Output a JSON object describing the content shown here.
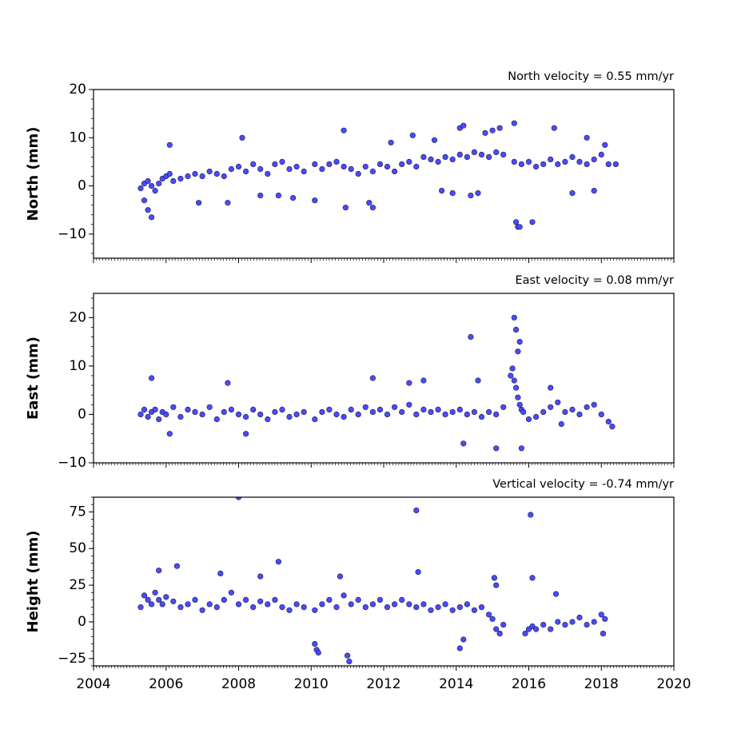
{
  "chart_data": [
    {
      "type": "scatter",
      "title": "North velocity = 0.55 mm/yr",
      "xlabel": "",
      "ylabel": "North (mm)",
      "xlim": [
        2004,
        2020
      ],
      "ylim": [
        -15,
        20
      ],
      "yticks": [
        -10,
        0,
        10,
        20
      ],
      "ytick_labels": [
        "−10",
        "0",
        "10",
        "20"
      ],
      "xticks": [
        2004,
        2006,
        2008,
        2010,
        2012,
        2014,
        2016,
        2018,
        2020
      ],
      "xtick_labels": [],
      "marker_color": "#4a4aff",
      "marker_edge": "#1a1a40",
      "series": [
        {
          "x": [
            2005.3,
            2005.4,
            2005.5,
            2005.6,
            2005.7,
            2005.8,
            2005.9,
            2006.0,
            2006.1,
            2006.2,
            2006.4,
            2006.6,
            2006.8,
            2007.0,
            2007.2,
            2007.4,
            2007.6,
            2007.8,
            2008.0,
            2008.2,
            2008.4,
            2008.6,
            2008.8,
            2009.0,
            2009.2,
            2009.4,
            2009.6,
            2009.8,
            2010.1,
            2010.3,
            2010.5,
            2010.7,
            2010.9,
            2011.1,
            2011.3,
            2011.5,
            2011.7,
            2011.9,
            2012.1,
            2012.3,
            2012.5,
            2012.7,
            2012.9,
            2013.1,
            2013.3,
            2013.5,
            2013.7,
            2013.9,
            2014.1,
            2014.3,
            2014.5,
            2014.7,
            2014.9,
            2015.1,
            2015.3,
            2015.6,
            2015.8,
            2016.0,
            2016.2,
            2016.4,
            2016.6,
            2016.8,
            2017.0,
            2017.2,
            2017.4,
            2017.6,
            2017.8,
            2018.0,
            2018.2,
            2005.4,
            2005.5,
            2005.6,
            2006.1,
            2006.9,
            2007.7,
            2008.1,
            2008.6,
            2009.1,
            2009.5,
            2010.1,
            2010.9,
            2010.95,
            2011.6,
            2011.7,
            2012.2,
            2012.8,
            2013.4,
            2013.6,
            2013.9,
            2014.1,
            2014.2,
            2014.4,
            2014.6,
            2014.8,
            2015.0,
            2015.2,
            2015.6,
            2015.65,
            2015.7,
            2015.75,
            2016.1,
            2016.7,
            2017.2,
            2017.6,
            2017.8,
            2018.1,
            2018.4
          ],
          "y": [
            -0.5,
            0.5,
            1.0,
            0.0,
            -1.0,
            0.5,
            1.5,
            2.0,
            2.5,
            1.0,
            1.5,
            2.0,
            2.5,
            2.0,
            3.0,
            2.5,
            2.0,
            3.5,
            4.0,
            3.0,
            4.5,
            3.5,
            2.5,
            4.5,
            5.0,
            3.5,
            4.0,
            3.0,
            4.5,
            3.5,
            4.5,
            5.0,
            4.0,
            3.5,
            2.5,
            4.0,
            3.0,
            4.5,
            4.0,
            3.0,
            4.5,
            5.0,
            4.0,
            6.0,
            5.5,
            5.0,
            6.0,
            5.5,
            6.5,
            6.0,
            7.0,
            6.5,
            6.0,
            7.0,
            6.5,
            5.0,
            4.5,
            5.0,
            4.0,
            4.5,
            5.5,
            4.5,
            5.0,
            6.0,
            5.0,
            4.5,
            5.5,
            6.5,
            4.5,
            -3.0,
            -5.0,
            -6.5,
            8.5,
            -3.5,
            -3.5,
            10.0,
            -2.0,
            -2.0,
            -2.5,
            -3.0,
            11.5,
            -4.5,
            -3.5,
            -4.5,
            9.0,
            10.5,
            9.5,
            -1.0,
            -1.5,
            12.0,
            12.5,
            -2.0,
            -1.5,
            11.0,
            11.5,
            12.0,
            13.0,
            -7.5,
            -8.5,
            -8.5,
            -7.5,
            12.0,
            -1.5,
            10.0,
            -1.0,
            8.5,
            4.5
          ]
        }
      ]
    },
    {
      "type": "scatter",
      "title": "East velocity = 0.08 mm/yr",
      "xlabel": "",
      "ylabel": "East (mm)",
      "xlim": [
        2004,
        2020
      ],
      "ylim": [
        -10,
        25
      ],
      "yticks": [
        -10,
        0,
        10,
        20
      ],
      "ytick_labels": [
        "−10",
        "0",
        "10",
        "20"
      ],
      "xticks": [
        2004,
        2006,
        2008,
        2010,
        2012,
        2014,
        2016,
        2018,
        2020
      ],
      "xtick_labels": [],
      "marker_color": "#4a4aff",
      "marker_edge": "#1a1a40",
      "series": [
        {
          "x": [
            2005.3,
            2005.4,
            2005.5,
            2005.6,
            2005.7,
            2005.8,
            2005.9,
            2006.0,
            2006.2,
            2006.4,
            2006.6,
            2006.8,
            2007.0,
            2007.2,
            2007.4,
            2007.6,
            2007.8,
            2008.0,
            2008.2,
            2008.4,
            2008.6,
            2008.8,
            2009.0,
            2009.2,
            2009.4,
            2009.6,
            2009.8,
            2010.1,
            2010.3,
            2010.5,
            2010.7,
            2010.9,
            2011.1,
            2011.3,
            2011.5,
            2011.7,
            2011.9,
            2012.1,
            2012.3,
            2012.5,
            2012.7,
            2012.9,
            2013.1,
            2013.3,
            2013.5,
            2013.7,
            2013.9,
            2014.1,
            2014.3,
            2014.5,
            2014.7,
            2014.9,
            2015.1,
            2015.3,
            2015.5,
            2015.55,
            2015.6,
            2015.65,
            2015.7,
            2015.75,
            2015.8,
            2015.85,
            2016.0,
            2016.2,
            2016.4,
            2016.6,
            2016.8,
            2017.0,
            2017.2,
            2017.4,
            2017.6,
            2017.8,
            2018.0,
            2018.2,
            2005.6,
            2006.1,
            2007.7,
            2008.2,
            2011.7,
            2012.7,
            2013.1,
            2014.2,
            2014.6,
            2014.4,
            2015.1,
            2015.6,
            2015.65,
            2015.7,
            2015.75,
            2015.8,
            2016.6,
            2016.9,
            2018.3
          ],
          "y": [
            0.0,
            1.0,
            -0.5,
            0.5,
            1.0,
            -1.0,
            0.5,
            0.0,
            1.5,
            -0.5,
            1.0,
            0.5,
            0.0,
            1.5,
            -1.0,
            0.5,
            1.0,
            0.0,
            -0.5,
            1.0,
            0.0,
            -1.0,
            0.5,
            1.0,
            -0.5,
            0.0,
            0.5,
            -1.0,
            0.5,
            1.0,
            0.0,
            -0.5,
            1.0,
            0.0,
            1.5,
            0.5,
            1.0,
            0.0,
            1.5,
            0.5,
            2.0,
            0.0,
            1.0,
            0.5,
            1.0,
            0.0,
            0.5,
            1.0,
            0.0,
            0.5,
            -0.5,
            0.5,
            0.0,
            1.5,
            8.0,
            9.5,
            7.0,
            5.5,
            3.5,
            2.0,
            1.0,
            0.5,
            -1.0,
            -0.5,
            0.5,
            1.5,
            2.5,
            0.5,
            1.0,
            0.0,
            1.5,
            2.0,
            0.0,
            -1.5,
            7.5,
            -4.0,
            6.5,
            -4.0,
            7.5,
            6.5,
            7.0,
            -6.0,
            7.0,
            16.0,
            -7.0,
            20.0,
            17.5,
            13.0,
            15.0,
            -7.0,
            5.5,
            -2.0,
            -2.5
          ]
        }
      ]
    },
    {
      "type": "scatter",
      "title": "Vertical velocity = -0.74 mm/yr",
      "xlabel": "",
      "ylabel": "Height (mm)",
      "xlim": [
        2004,
        2020
      ],
      "ylim": [
        -30,
        85
      ],
      "yticks": [
        -25,
        0,
        25,
        50,
        75
      ],
      "ytick_labels": [
        "−25",
        "0",
        "25",
        "50",
        "75"
      ],
      "xticks": [
        2004,
        2006,
        2008,
        2010,
        2012,
        2014,
        2016,
        2018,
        2020
      ],
      "xtick_labels": [
        "2004",
        "2006",
        "2008",
        "2010",
        "2012",
        "2014",
        "2016",
        "2018",
        "2020"
      ],
      "marker_color": "#4a4aff",
      "marker_edge": "#1a1a40",
      "series": [
        {
          "x": [
            2005.3,
            2005.4,
            2005.5,
            2005.6,
            2005.7,
            2005.8,
            2005.9,
            2006.0,
            2006.2,
            2006.4,
            2006.6,
            2006.8,
            2007.0,
            2007.2,
            2007.4,
            2007.6,
            2007.8,
            2008.0,
            2008.2,
            2008.4,
            2008.6,
            2008.8,
            2009.0,
            2009.2,
            2009.4,
            2009.6,
            2009.8,
            2010.1,
            2010.3,
            2010.5,
            2010.7,
            2010.9,
            2011.1,
            2011.3,
            2011.5,
            2011.7,
            2011.9,
            2012.1,
            2012.3,
            2012.5,
            2012.7,
            2012.9,
            2013.1,
            2013.3,
            2013.5,
            2013.7,
            2013.9,
            2014.1,
            2014.3,
            2014.5,
            2014.7,
            2014.9,
            2015.0,
            2015.1,
            2015.2,
            2015.3,
            2015.9,
            2016.0,
            2016.1,
            2016.2,
            2016.4,
            2016.6,
            2016.8,
            2017.0,
            2017.2,
            2017.4,
            2017.6,
            2017.8,
            2018.0,
            2018.1,
            2005.8,
            2006.3,
            2007.5,
            2008.0,
            2008.6,
            2009.1,
            2010.1,
            2010.15,
            2010.2,
            2010.8,
            2011.0,
            2011.05,
            2012.9,
            2012.95,
            2014.1,
            2014.2,
            2015.05,
            2015.1,
            2016.05,
            2016.1,
            2016.75,
            2018.05
          ],
          "y": [
            10.0,
            18.0,
            15.0,
            12.0,
            20.0,
            15.0,
            12.0,
            17.0,
            14.0,
            10.0,
            12.0,
            15.0,
            8.0,
            12.0,
            10.0,
            15.0,
            20.0,
            12.0,
            15.0,
            10.0,
            14.0,
            12.0,
            15.0,
            10.0,
            8.0,
            12.0,
            10.0,
            8.0,
            12.0,
            15.0,
            10.0,
            18.0,
            12.0,
            15.0,
            10.0,
            12.0,
            15.0,
            10.0,
            12.0,
            15.0,
            12.0,
            10.0,
            12.0,
            8.0,
            10.0,
            12.0,
            8.0,
            10.0,
            12.0,
            8.0,
            10.0,
            5.0,
            2.0,
            -5.0,
            -8.0,
            -2.0,
            -8.0,
            -5.0,
            -3.0,
            -5.0,
            -2.0,
            -5.0,
            0.0,
            -2.0,
            0.0,
            3.0,
            -2.0,
            0.0,
            5.0,
            2.0,
            35.0,
            38.0,
            33.0,
            85.0,
            31.0,
            41.0,
            -15.0,
            -19.0,
            -21.0,
            31.0,
            -23.0,
            -27.0,
            76.0,
            34.0,
            -18.0,
            -12.0,
            30.0,
            25.0,
            73.0,
            30.0,
            19.0,
            -8.0
          ]
        }
      ]
    }
  ]
}
